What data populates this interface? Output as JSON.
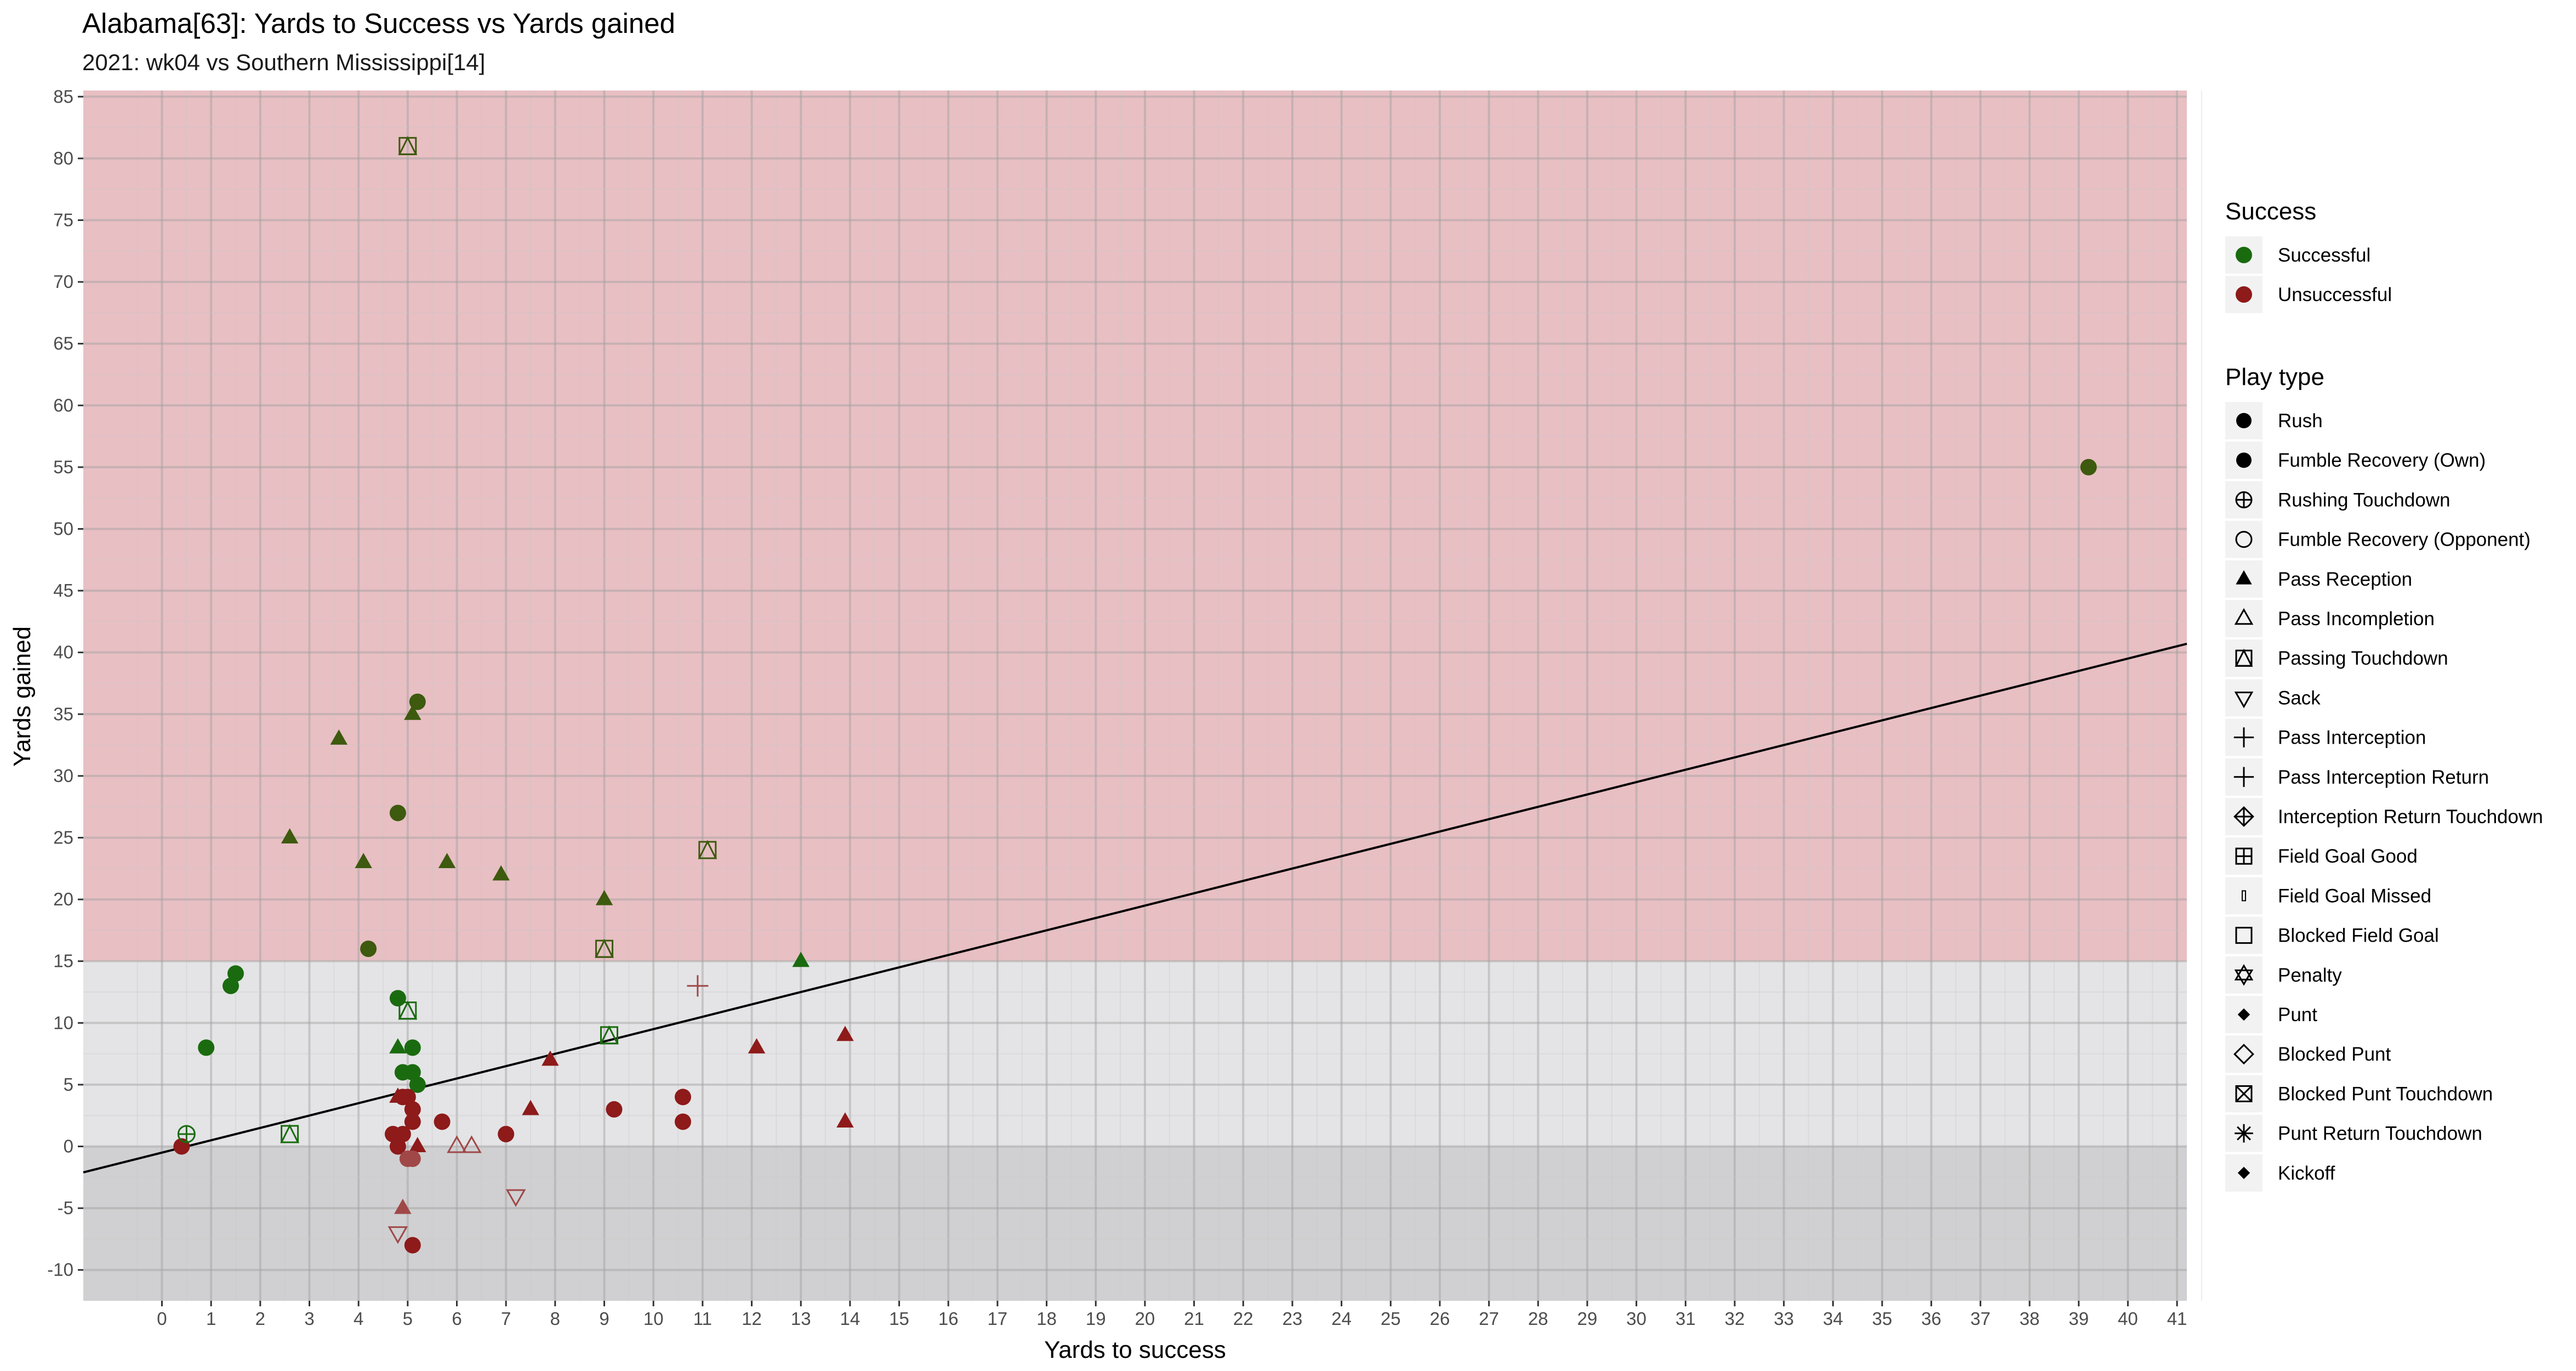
{
  "chart_data": {
    "type": "scatter",
    "title": "Alabama[63]: Yards to Success vs Yards gained",
    "subtitle": "2021: wk04 vs Southern Mississippi[14]",
    "xlabel": "Yards to success",
    "ylabel": "Yards gained",
    "xlim": [
      -1.6,
      41.2
    ],
    "ylim": [
      -12.5,
      85.5
    ],
    "x_ticks": [
      0,
      1,
      2,
      3,
      4,
      5,
      6,
      7,
      8,
      9,
      10,
      11,
      12,
      13,
      14,
      15,
      16,
      17,
      18,
      19,
      20,
      21,
      22,
      23,
      24,
      25,
      26,
      27,
      28,
      29,
      30,
      31,
      32,
      33,
      34,
      35,
      36,
      37,
      38,
      39,
      40,
      41
    ],
    "y_ticks": [
      -10,
      -5,
      0,
      5,
      10,
      15,
      20,
      25,
      30,
      35,
      40,
      45,
      50,
      55,
      60,
      65,
      70,
      75,
      80,
      85
    ],
    "grid": true,
    "zones": [
      {
        "from": 15,
        "to": 85.5,
        "color": "#e8bfc3"
      },
      {
        "from": 0,
        "to": 15,
        "color": "#e4e4e6"
      },
      {
        "from": -12.5,
        "to": 0,
        "color": "#d0d0d2"
      }
    ],
    "trend_line": {
      "intercept": -0.5,
      "slope": 1.0
    },
    "colors": {
      "successful": "#1a6b0f",
      "successful_dark": "#3d5a0e",
      "unsuccessful": "#8e1a1a",
      "unsuccessful_light": "#a04848",
      "line": "#000000"
    },
    "points": [
      {
        "x": 0.4,
        "y": 0,
        "shape": "circle",
        "color": "unsuccessful"
      },
      {
        "x": 0.5,
        "y": 1,
        "shape": "circle-plus",
        "color": "successful"
      },
      {
        "x": 0.9,
        "y": 8,
        "shape": "circle",
        "color": "successful"
      },
      {
        "x": 1.4,
        "y": 13,
        "shape": "circle",
        "color": "successful"
      },
      {
        "x": 1.5,
        "y": 14,
        "shape": "circle",
        "color": "successful"
      },
      {
        "x": 2.6,
        "y": 1,
        "shape": "square-tri",
        "color": "successful"
      },
      {
        "x": 2.6,
        "y": 25,
        "shape": "triangle",
        "color": "successful_dark"
      },
      {
        "x": 3.6,
        "y": 33,
        "shape": "triangle",
        "color": "successful_dark"
      },
      {
        "x": 4.1,
        "y": 23,
        "shape": "triangle",
        "color": "successful_dark"
      },
      {
        "x": 4.2,
        "y": 16,
        "shape": "circle",
        "color": "successful_dark"
      },
      {
        "x": 4.8,
        "y": 27,
        "shape": "circle",
        "color": "successful_dark"
      },
      {
        "x": 4.8,
        "y": 12,
        "shape": "circle",
        "color": "successful"
      },
      {
        "x": 4.8,
        "y": 8,
        "shape": "triangle",
        "color": "successful"
      },
      {
        "x": 5.0,
        "y": 11,
        "shape": "square-tri",
        "color": "successful"
      },
      {
        "x": 5.0,
        "y": 81,
        "shape": "square-tri",
        "color": "successful_dark"
      },
      {
        "x": 4.9,
        "y": 6,
        "shape": "circle",
        "color": "successful"
      },
      {
        "x": 5.1,
        "y": 6,
        "shape": "circle",
        "color": "successful"
      },
      {
        "x": 5.1,
        "y": 8,
        "shape": "circle",
        "color": "successful"
      },
      {
        "x": 5.2,
        "y": 5,
        "shape": "circle",
        "color": "successful"
      },
      {
        "x": 5.1,
        "y": 35,
        "shape": "triangle",
        "color": "successful_dark"
      },
      {
        "x": 5.2,
        "y": 36,
        "shape": "circle",
        "color": "successful_dark"
      },
      {
        "x": 5.8,
        "y": 23,
        "shape": "triangle",
        "color": "successful_dark"
      },
      {
        "x": 6.9,
        "y": 22,
        "shape": "triangle",
        "color": "successful_dark"
      },
      {
        "x": 9.0,
        "y": 20,
        "shape": "triangle",
        "color": "successful_dark"
      },
      {
        "x": 9.0,
        "y": 16,
        "shape": "square-tri",
        "color": "successful_dark"
      },
      {
        "x": 9.1,
        "y": 9,
        "shape": "square-tri",
        "color": "successful"
      },
      {
        "x": 11.1,
        "y": 24,
        "shape": "square-tri",
        "color": "successful_dark"
      },
      {
        "x": 13.0,
        "y": 15,
        "shape": "triangle",
        "color": "successful"
      },
      {
        "x": 39.2,
        "y": 55,
        "shape": "circle",
        "color": "successful_dark"
      },
      {
        "x": 4.7,
        "y": 1,
        "shape": "circle",
        "color": "unsuccessful"
      },
      {
        "x": 4.8,
        "y": 0,
        "shape": "circle",
        "color": "unsuccessful"
      },
      {
        "x": 4.9,
        "y": 1,
        "shape": "circle",
        "color": "unsuccessful"
      },
      {
        "x": 4.8,
        "y": 4,
        "shape": "triangle",
        "color": "unsuccessful"
      },
      {
        "x": 4.9,
        "y": 4,
        "shape": "circle",
        "color": "unsuccessful"
      },
      {
        "x": 5.0,
        "y": 4,
        "shape": "circle",
        "color": "unsuccessful"
      },
      {
        "x": 5.1,
        "y": 3,
        "shape": "circle",
        "color": "unsuccessful"
      },
      {
        "x": 5.1,
        "y": 2,
        "shape": "circle",
        "color": "unsuccessful"
      },
      {
        "x": 5.2,
        "y": 0,
        "shape": "triangle",
        "color": "unsuccessful"
      },
      {
        "x": 5.0,
        "y": -1,
        "shape": "circle",
        "color": "unsuccessful_light"
      },
      {
        "x": 5.1,
        "y": -1,
        "shape": "circle",
        "color": "unsuccessful_light"
      },
      {
        "x": 4.9,
        "y": -5,
        "shape": "triangle",
        "color": "unsuccessful_light"
      },
      {
        "x": 4.8,
        "y": -7,
        "shape": "triangle-down",
        "color": "unsuccessful_light"
      },
      {
        "x": 5.1,
        "y": -8,
        "shape": "circle",
        "color": "unsuccessful"
      },
      {
        "x": 5.7,
        "y": 2,
        "shape": "circle",
        "color": "unsuccessful"
      },
      {
        "x": 6.0,
        "y": 0,
        "shape": "triangle-open",
        "color": "unsuccessful_light"
      },
      {
        "x": 6.3,
        "y": 0,
        "shape": "triangle-open",
        "color": "unsuccessful_light"
      },
      {
        "x": 7.0,
        "y": 1,
        "shape": "circle",
        "color": "unsuccessful"
      },
      {
        "x": 7.2,
        "y": -4,
        "shape": "triangle-down",
        "color": "unsuccessful_light"
      },
      {
        "x": 7.5,
        "y": 3,
        "shape": "triangle",
        "color": "unsuccessful"
      },
      {
        "x": 7.9,
        "y": 7,
        "shape": "triangle",
        "color": "unsuccessful"
      },
      {
        "x": 9.2,
        "y": 3,
        "shape": "circle",
        "color": "unsuccessful"
      },
      {
        "x": 10.6,
        "y": 2,
        "shape": "circle",
        "color": "unsuccessful"
      },
      {
        "x": 10.6,
        "y": 4,
        "shape": "circle",
        "color": "unsuccessful"
      },
      {
        "x": 10.9,
        "y": 13,
        "shape": "plus",
        "color": "unsuccessful_light"
      },
      {
        "x": 12.1,
        "y": 8,
        "shape": "triangle",
        "color": "unsuccessful"
      },
      {
        "x": 13.9,
        "y": 9,
        "shape": "triangle",
        "color": "unsuccessful"
      },
      {
        "x": 13.9,
        "y": 2,
        "shape": "triangle",
        "color": "unsuccessful"
      }
    ],
    "legend": {
      "position": "right",
      "success": {
        "title": "Success",
        "items": [
          {
            "label": "Successful",
            "color": "#1a6b0f"
          },
          {
            "label": "Unsuccessful",
            "color": "#8e1a1a"
          }
        ]
      },
      "play_type": {
        "title": "Play type",
        "items": [
          {
            "label": "Rush",
            "shape": "circle"
          },
          {
            "label": "Fumble Recovery (Own)",
            "shape": "circle"
          },
          {
            "label": "Rushing Touchdown",
            "shape": "circle-plus"
          },
          {
            "label": "Fumble Recovery (Opponent)",
            "shape": "circle-open"
          },
          {
            "label": "Pass Reception",
            "shape": "triangle"
          },
          {
            "label": "Pass Incompletion",
            "shape": "triangle-open"
          },
          {
            "label": "Passing Touchdown",
            "shape": "square-tri"
          },
          {
            "label": "Sack",
            "shape": "triangle-down"
          },
          {
            "label": "Pass Interception",
            "shape": "plus"
          },
          {
            "label": "Pass Interception Return",
            "shape": "plus"
          },
          {
            "label": "Interception Return Touchdown",
            "shape": "diamond-plus"
          },
          {
            "label": "Field Goal Good",
            "shape": "square-plus"
          },
          {
            "label": "Field Goal Missed",
            "shape": "small-rect"
          },
          {
            "label": "Blocked Field Goal",
            "shape": "square-open"
          },
          {
            "label": "Penalty",
            "shape": "star-of-david"
          },
          {
            "label": "Punt",
            "shape": "diamond-small"
          },
          {
            "label": "Blocked Punt",
            "shape": "diamond-open"
          },
          {
            "label": "Blocked Punt Touchdown",
            "shape": "square-x"
          },
          {
            "label": "Punt Return Touchdown",
            "shape": "asterisk"
          },
          {
            "label": "Kickoff",
            "shape": "diamond-small"
          }
        ]
      }
    }
  }
}
